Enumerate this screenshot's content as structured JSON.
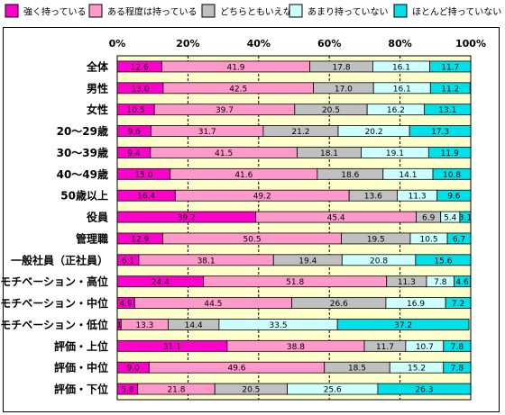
{
  "chart_data": {
    "type": "bar",
    "orientation": "horizontal",
    "stacked": true,
    "percent": true,
    "title": "",
    "xlabel": "",
    "ylabel": "",
    "xlim": [
      0,
      100
    ],
    "tick_labels": [
      "0%",
      "20%",
      "40%",
      "60%",
      "80%",
      "100%"
    ],
    "grid": true,
    "legend_position": "top",
    "plot_background": "#FFFFCC",
    "categories": [
      "全体",
      "男性",
      "女性",
      "20～29歳",
      "30～39歳",
      "40～49歳",
      "50歳以上",
      "役員",
      "管理職",
      "一般社員（正社員）",
      "モチベーション・高位",
      "モチベーション・中位",
      "モチベーション・低位",
      "評価・上位",
      "評価・中位",
      "評価・下位"
    ],
    "series": [
      {
        "name": "強く持っている",
        "color": "#FF00CC",
        "values": [
          12.6,
          13.0,
          10.5,
          9.6,
          9.4,
          15.0,
          16.4,
          39.2,
          12.9,
          6.1,
          24.4,
          4.9,
          1.1,
          31.1,
          9.0,
          5.8
        ],
        "labels": [
          "12.6",
          "13.0",
          "10.5",
          "9.6",
          "9.4",
          "15.0",
          "16.4",
          "39.2",
          "12.9",
          "6.1",
          "24.4",
          "4.9",
          "1",
          "31.1",
          "9.0",
          "5.8"
        ]
      },
      {
        "name": "ある程度は持っている",
        "color": "#FF99CC",
        "values": [
          41.9,
          42.5,
          39.7,
          31.7,
          41.5,
          41.6,
          49.2,
          45.4,
          50.5,
          38.1,
          51.8,
          44.5,
          13.3,
          38.8,
          49.6,
          21.8
        ],
        "labels": [
          "41.9",
          "42.5",
          "39.7",
          "31.7",
          "41.5",
          "41.6",
          "49.2",
          "45.4",
          "50.5",
          "38.1",
          "51.8",
          "44.5",
          "13.3",
          "38.8",
          "49.6",
          "21.8"
        ]
      },
      {
        "name": "どちらともいえない",
        "color": "#C0C0C0",
        "values": [
          17.8,
          17.0,
          20.5,
          21.2,
          18.1,
          18.6,
          13.6,
          6.9,
          19.5,
          19.4,
          11.3,
          26.6,
          14.4,
          11.7,
          18.5,
          20.5
        ],
        "labels": [
          "17.8",
          "17.0",
          "20.5",
          "21.2",
          "18.1",
          "18.6",
          "13.6",
          "6.9",
          "19.5",
          "19.4",
          "11.3",
          "26.6",
          "14.4",
          "11.7",
          "18.5",
          "20.5"
        ]
      },
      {
        "name": "あまり持っていない",
        "color": "#CCFFFF",
        "values": [
          16.1,
          16.1,
          16.2,
          20.2,
          19.1,
          14.1,
          11.3,
          5.4,
          10.5,
          20.8,
          7.8,
          16.9,
          33.5,
          10.7,
          15.2,
          25.6
        ],
        "labels": [
          "16.1",
          "16.1",
          "16.2",
          "20.2",
          "19.1",
          "14.1",
          "11.3",
          "5.4",
          "10.5",
          "20.8",
          "7.8",
          "16.9",
          "33.5",
          "10.7",
          "15.2",
          "25.6"
        ]
      },
      {
        "name": "ほとんど持っていない",
        "color": "#00E0E8",
        "values": [
          11.7,
          11.2,
          13.1,
          17.3,
          11.9,
          10.8,
          9.6,
          3.1,
          6.7,
          15.6,
          4.6,
          7.2,
          37.2,
          7.8,
          7.8,
          26.3
        ],
        "labels": [
          "11.7",
          "11.2",
          "13.1",
          "17.3",
          "11.9",
          "10.8",
          "9.6",
          "3.1",
          "6.7",
          "15.6",
          "4.6",
          "7.2",
          "37.2",
          "7.8",
          "7.8",
          "26.3"
        ]
      }
    ]
  }
}
